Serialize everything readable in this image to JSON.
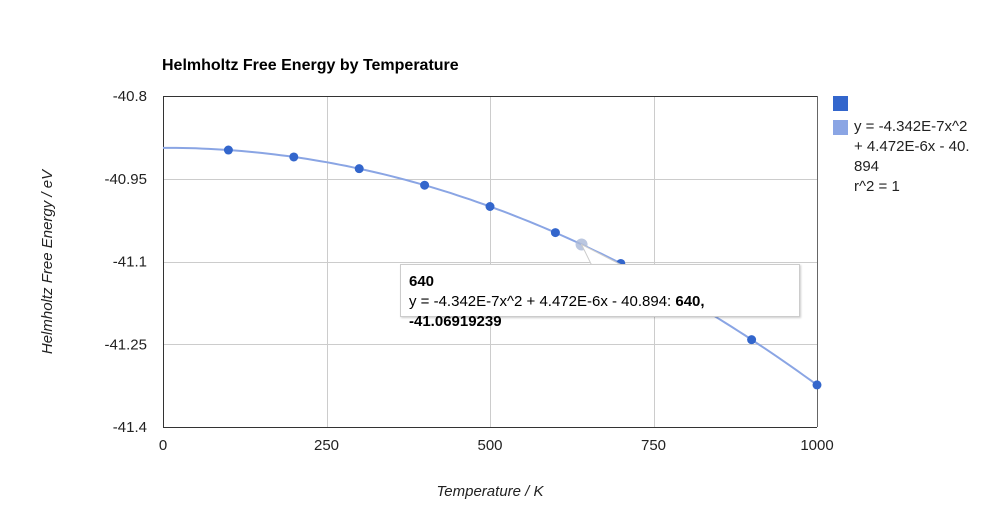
{
  "chart_data": {
    "type": "scatter",
    "title": "Helmholtz Free Energy by Temperature",
    "xlabel": "Temperature / K",
    "ylabel": "Helmholtz Free Energy / eV",
    "xlim": [
      0,
      1000
    ],
    "ylim": [
      -41.4,
      -40.8
    ],
    "x_ticks": [
      "0",
      "250",
      "500",
      "750",
      "1000"
    ],
    "x_tick_values": [
      0,
      250,
      500,
      750,
      1000
    ],
    "y_ticks": [
      "-40.8",
      "-40.95",
      "-41.1",
      "-41.25",
      "-41.4"
    ],
    "y_tick_values": [
      -40.8,
      -40.95,
      -41.1,
      -41.25,
      -41.4
    ],
    "grid": true,
    "legend_position": "right",
    "series": [
      {
        "name": "",
        "color": "#3366cc",
        "x": [
          100,
          200,
          300,
          400,
          500,
          600,
          700,
          800,
          900,
          1000
        ],
        "y": [
          -40.8979,
          -40.9105,
          -40.9317,
          -40.9617,
          -41.0003,
          -41.0476,
          -41.1036,
          -41.1683,
          -41.2417,
          -41.3237
        ]
      }
    ],
    "trendline": {
      "type": "polynomial",
      "coefficients": [
        -4.342e-07,
        4.472e-06,
        -40.894
      ],
      "color": "#8aa5e4",
      "legend_lines": [
        "y = -4.342E-7x^2",
        "+ 4.472E-6x - 40.",
        "894",
        "r^2 = 1"
      ]
    },
    "tooltip": {
      "title": "640",
      "label": "y = -4.342E-7x^2 + 4.472E-6x - 40.894: ",
      "value": "640, -41.06919239",
      "x": 640,
      "y": -41.06919239
    }
  }
}
